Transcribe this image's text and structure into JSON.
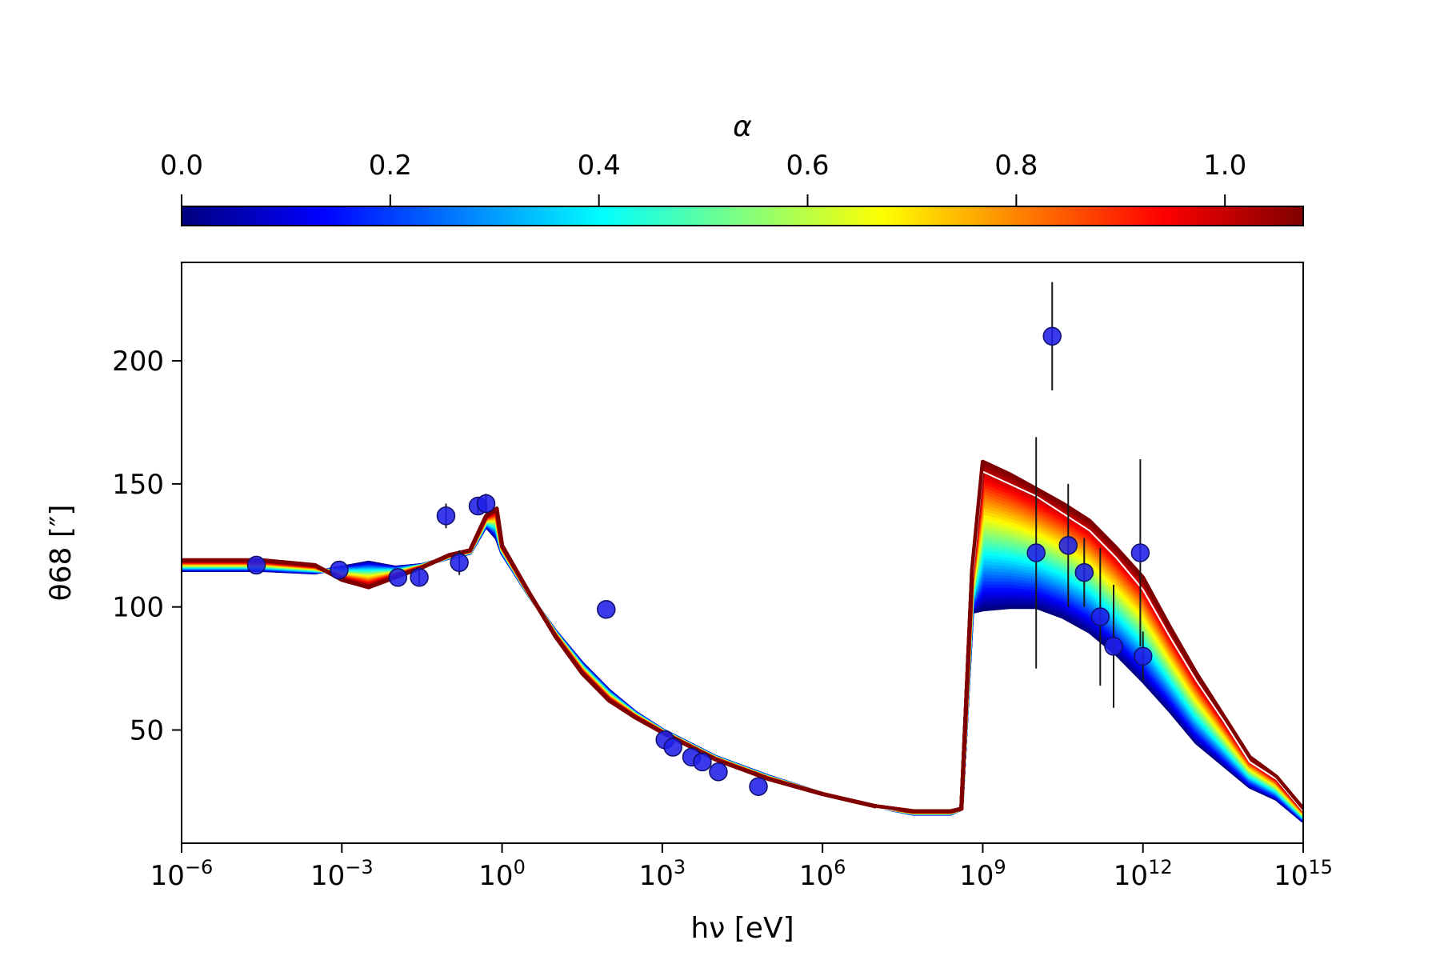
{
  "chart_data": {
    "type": "line",
    "xlabel": "hν [eV]",
    "ylabel": "θ68 [″]",
    "x_scale": "log",
    "xlim": [
      "1e-6",
      "1e15"
    ],
    "ylim": [
      4,
      240
    ],
    "x_ticks": [
      {
        "base": "10",
        "exp": "−6",
        "value": 1e-06
      },
      {
        "base": "10",
        "exp": "−3",
        "value": 0.001
      },
      {
        "base": "10",
        "exp": "0",
        "value": 1
      },
      {
        "base": "10",
        "exp": "3",
        "value": 1000.0
      },
      {
        "base": "10",
        "exp": "6",
        "value": 1000000.0
      },
      {
        "base": "10",
        "exp": "9",
        "value": 1000000000.0
      },
      {
        "base": "10",
        "exp": "12",
        "value": 1000000000000.0
      },
      {
        "base": "10",
        "exp": "15",
        "value": 1000000000000000.0
      }
    ],
    "y_ticks": [
      50,
      100,
      150,
      200
    ],
    "colorbar": {
      "label": "α",
      "colormap": "jet",
      "range": [
        0.0,
        1.075
      ],
      "ticks": [
        "0.0",
        "0.2",
        "0.4",
        "0.6",
        "0.8",
        "1.0"
      ],
      "tick_values": [
        0.0,
        0.2,
        0.4,
        0.6,
        0.8,
        1.0
      ],
      "stops": [
        "#00007f",
        "#0000ff",
        "#007fff",
        "#00ffff",
        "#7fff7f",
        "#ffff00",
        "#ff7f00",
        "#ff0000",
        "#7f0000"
      ]
    },
    "curve_logx": [
      -6,
      -4.5,
      -3.5,
      -3,
      -2.5,
      -2,
      -1.5,
      -1,
      -0.6,
      -0.3,
      -0.1,
      0,
      0.5,
      1,
      1.5,
      2,
      2.5,
      3,
      4,
      5,
      6,
      7,
      7.7,
      8.4,
      8.6,
      8.8,
      9,
      9.5,
      10,
      10.5,
      11,
      11.5,
      12,
      12.5,
      13,
      13.5,
      14,
      14.5,
      15
    ],
    "curve_alpha0": [
      115,
      115,
      114,
      116,
      118,
      116,
      117,
      120,
      122,
      133,
      128,
      122,
      105,
      90,
      77,
      66,
      57,
      50,
      39,
      31,
      24,
      19,
      16,
      16,
      18,
      98,
      99,
      100,
      100,
      96,
      90,
      81,
      70,
      58,
      45,
      36,
      27,
      22,
      13
    ],
    "curve_alpha1": [
      119,
      119,
      117,
      111,
      108,
      112,
      116,
      121,
      123,
      137,
      140,
      125,
      106,
      88,
      73,
      62,
      55,
      49,
      38,
      30,
      24,
      19,
      17,
      17,
      18,
      115,
      159,
      154,
      148,
      142,
      135,
      124,
      112,
      92,
      73,
      56,
      39,
      31,
      18
    ],
    "curve_white": [
      null,
      null,
      null,
      null,
      null,
      null,
      null,
      null,
      null,
      null,
      null,
      null,
      null,
      null,
      null,
      null,
      null,
      null,
      null,
      null,
      null,
      18,
      17,
      17,
      18,
      110,
      155,
      150,
      145,
      138,
      131,
      120,
      107,
      88,
      70,
      54,
      37,
      30,
      17
    ],
    "points": [
      {
        "x": "1e-4.6",
        "y": 117,
        "yerr": 0
      },
      {
        "x": "1e-3.05",
        "y": 115,
        "yerr": 0
      },
      {
        "x": "1e-1.95",
        "y": 112,
        "yerr": 0
      },
      {
        "x": "1e-1.55",
        "y": 112,
        "yerr": 3
      },
      {
        "x": "1e-1.05",
        "y": 137,
        "yerr": 5
      },
      {
        "x": "1e-0.8",
        "y": 118,
        "yerr": 5
      },
      {
        "x": "1e-0.45",
        "y": 141,
        "yerr": 3
      },
      {
        "x": "1e-0.3",
        "y": 142,
        "yerr": 4
      },
      {
        "x": "1e1.95",
        "y": 99,
        "yerr": 0
      },
      {
        "x": "1e3.05",
        "y": 46,
        "yerr": 0
      },
      {
        "x": "1e3.2",
        "y": 43,
        "yerr": 0
      },
      {
        "x": "1e3.55",
        "y": 39,
        "yerr": 0
      },
      {
        "x": "1e3.75",
        "y": 37,
        "yerr": 0
      },
      {
        "x": "1e4.05",
        "y": 33,
        "yerr": 0
      },
      {
        "x": "1e4.8",
        "y": 27,
        "yerr": 0
      },
      {
        "x": "1e10",
        "y": 122,
        "yerr": 47
      },
      {
        "x": "1e10.3",
        "y": 210,
        "yerr": 22
      },
      {
        "x": "1e10.6",
        "y": 125,
        "yerr": 25
      },
      {
        "x": "1e10.9",
        "y": 114,
        "yerr": 14
      },
      {
        "x": "1e11.2",
        "y": 96,
        "yerr": 28
      },
      {
        "x": "1e11.45",
        "y": 84,
        "yerr": 25
      },
      {
        "x": "1e11.95",
        "y": 122,
        "yerr": 38
      },
      {
        "x": "1e12",
        "y": 80,
        "yerr": 10
      }
    ],
    "marker_color": "#1f1fe8",
    "errorbar_color": "#1a1a1a",
    "grid": false,
    "legend": "none"
  }
}
